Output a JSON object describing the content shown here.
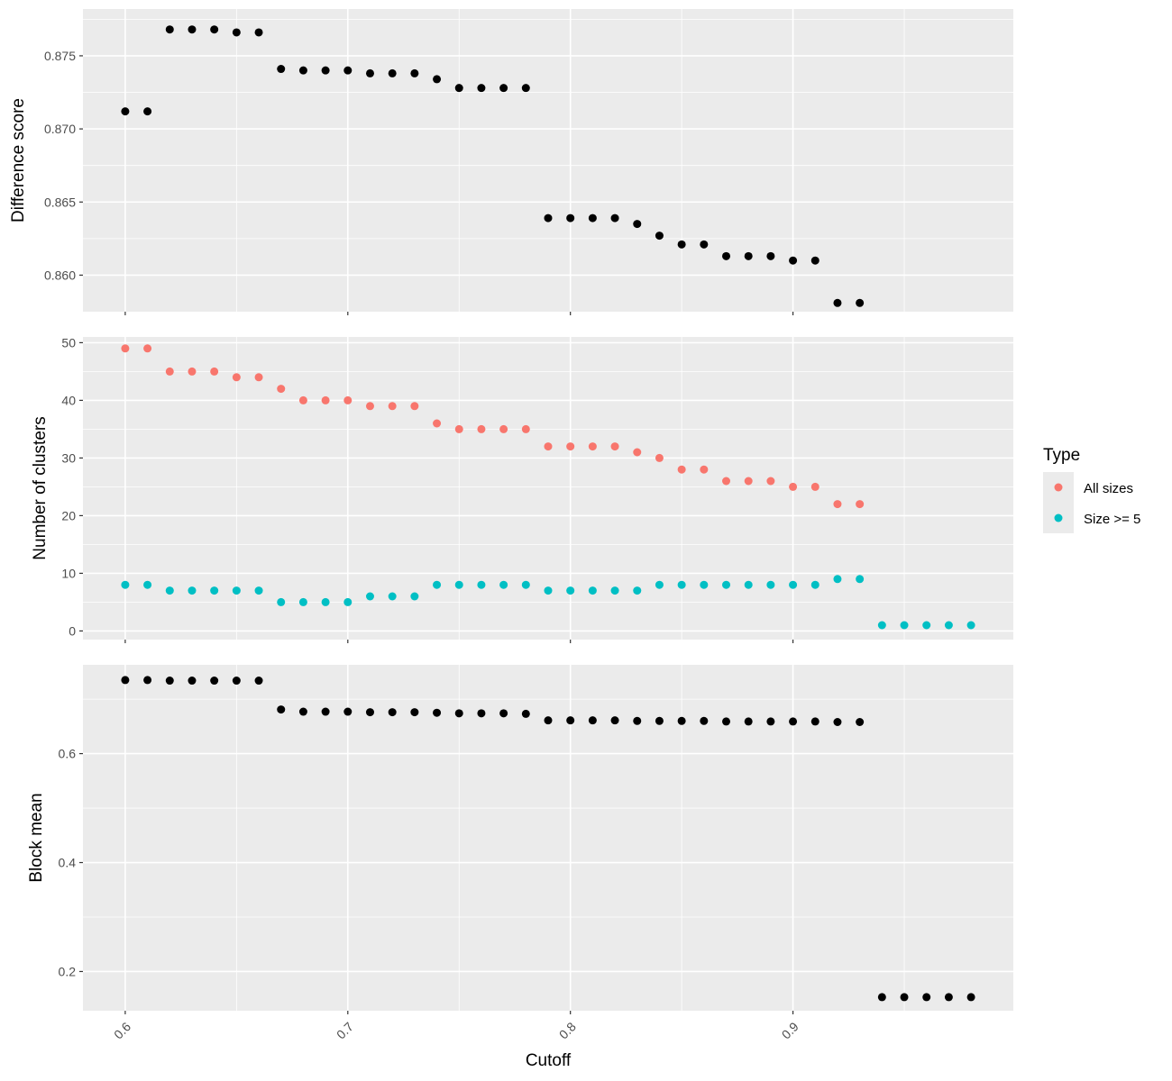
{
  "chart_data": [
    {
      "type": "scatter",
      "ylabel": "Difference score",
      "xlabel": "",
      "ylim": [
        0.8575,
        0.8782
      ],
      "yticks": [
        "0.860",
        "0.865",
        "0.870",
        "0.875"
      ],
      "ytick_values": [
        0.86,
        0.865,
        0.87,
        0.875
      ],
      "series": [
        {
          "x": [
            0.6,
            0.61,
            0.62,
            0.63,
            0.64,
            0.65,
            0.66,
            0.67,
            0.68,
            0.69,
            0.7,
            0.71,
            0.72,
            0.73,
            0.74,
            0.75,
            0.76,
            0.77,
            0.78,
            0.79,
            0.8,
            0.81,
            0.82,
            0.83,
            0.84,
            0.85,
            0.86,
            0.87,
            0.88,
            0.89,
            0.9,
            0.91,
            0.92,
            0.93
          ],
          "values": [
            0.8712,
            0.8712,
            0.8768,
            0.8768,
            0.8768,
            0.8766,
            0.8766,
            0.8741,
            0.874,
            0.874,
            0.874,
            0.8738,
            0.8738,
            0.8738,
            0.8734,
            0.8728,
            0.8728,
            0.8728,
            0.8728,
            0.8639,
            0.8639,
            0.8639,
            0.8639,
            0.8635,
            0.8627,
            0.8621,
            0.8621,
            0.8613,
            0.8613,
            0.8613,
            0.861,
            0.861,
            0.8581,
            0.8581
          ],
          "color": "#000000"
        }
      ]
    },
    {
      "type": "scatter",
      "ylabel": "Number of clusters",
      "xlabel": "",
      "ylim": [
        -1.5,
        51
      ],
      "yticks": [
        "0",
        "10",
        "20",
        "30",
        "40",
        "50"
      ],
      "ytick_values": [
        0,
        10,
        20,
        30,
        40,
        50
      ],
      "series": [
        {
          "name": "All sizes",
          "color": "#F8766D",
          "x": [
            0.6,
            0.61,
            0.62,
            0.63,
            0.64,
            0.65,
            0.66,
            0.67,
            0.68,
            0.69,
            0.7,
            0.71,
            0.72,
            0.73,
            0.74,
            0.75,
            0.76,
            0.77,
            0.78,
            0.79,
            0.8,
            0.81,
            0.82,
            0.83,
            0.84,
            0.85,
            0.86,
            0.87,
            0.88,
            0.89,
            0.9,
            0.91,
            0.92,
            0.93
          ],
          "values": [
            49,
            49,
            45,
            45,
            45,
            44,
            44,
            42,
            40,
            40,
            40,
            39,
            39,
            39,
            36,
            35,
            35,
            35,
            35,
            32,
            32,
            32,
            32,
            31,
            30,
            28,
            28,
            26,
            26,
            26,
            25,
            25,
            22,
            22
          ]
        },
        {
          "name": "Size >= 5",
          "color": "#00BFC4",
          "x": [
            0.6,
            0.61,
            0.62,
            0.63,
            0.64,
            0.65,
            0.66,
            0.67,
            0.68,
            0.69,
            0.7,
            0.71,
            0.72,
            0.73,
            0.74,
            0.75,
            0.76,
            0.77,
            0.78,
            0.79,
            0.8,
            0.81,
            0.82,
            0.83,
            0.84,
            0.85,
            0.86,
            0.87,
            0.88,
            0.89,
            0.9,
            0.91,
            0.92,
            0.93,
            0.94,
            0.95,
            0.96,
            0.97,
            0.98
          ],
          "values": [
            8,
            8,
            7,
            7,
            7,
            7,
            7,
            5,
            5,
            5,
            5,
            6,
            6,
            6,
            8,
            8,
            8,
            8,
            8,
            7,
            7,
            7,
            7,
            7,
            8,
            8,
            8,
            8,
            8,
            8,
            8,
            8,
            9,
            9,
            1,
            1,
            1,
            1,
            1
          ]
        }
      ]
    },
    {
      "type": "scatter",
      "ylabel": "Block mean",
      "xlabel": "Cutoff",
      "ylim": [
        0.128,
        0.763
      ],
      "yticks": [
        "0.2",
        "0.4",
        "0.6"
      ],
      "ytick_values": [
        0.2,
        0.4,
        0.6
      ],
      "series": [
        {
          "x": [
            0.6,
            0.61,
            0.62,
            0.63,
            0.64,
            0.65,
            0.66,
            0.67,
            0.68,
            0.69,
            0.7,
            0.71,
            0.72,
            0.73,
            0.74,
            0.75,
            0.76,
            0.77,
            0.78,
            0.79,
            0.8,
            0.81,
            0.82,
            0.83,
            0.84,
            0.85,
            0.86,
            0.87,
            0.88,
            0.89,
            0.9,
            0.91,
            0.92,
            0.93,
            0.94,
            0.95,
            0.96,
            0.97,
            0.98
          ],
          "values": [
            0.735,
            0.735,
            0.734,
            0.734,
            0.734,
            0.734,
            0.734,
            0.681,
            0.677,
            0.677,
            0.677,
            0.676,
            0.676,
            0.676,
            0.675,
            0.674,
            0.674,
            0.674,
            0.673,
            0.661,
            0.661,
            0.661,
            0.661,
            0.66,
            0.66,
            0.66,
            0.66,
            0.659,
            0.659,
            0.659,
            0.659,
            0.659,
            0.658,
            0.658,
            0.153,
            0.153,
            0.153,
            0.153,
            0.153
          ],
          "color": "#000000"
        }
      ],
      "xticks": [
        "0.6",
        "0.7",
        "0.8",
        "0.9"
      ],
      "xtick_values": [
        0.6,
        0.7,
        0.8,
        0.9
      ]
    }
  ],
  "x_axis": {
    "xlim": [
      0.581,
      0.999
    ],
    "tick_labels": [
      "0.6",
      "0.7",
      "0.8",
      "0.9"
    ],
    "tick_values": [
      0.6,
      0.7,
      0.8,
      0.9
    ],
    "minor_values": [
      0.65,
      0.75,
      0.85,
      0.95
    ],
    "title": "Cutoff"
  },
  "legend": {
    "title": "Type",
    "placement": "right",
    "items": [
      {
        "label": "All sizes",
        "color": "#F8766D"
      },
      {
        "label": "Size >= 5",
        "color": "#00BFC4"
      }
    ]
  },
  "style": {
    "panel_background": "#EBEBEB",
    "grid_color": "#FFFFFF",
    "point_color": "#000000"
  }
}
